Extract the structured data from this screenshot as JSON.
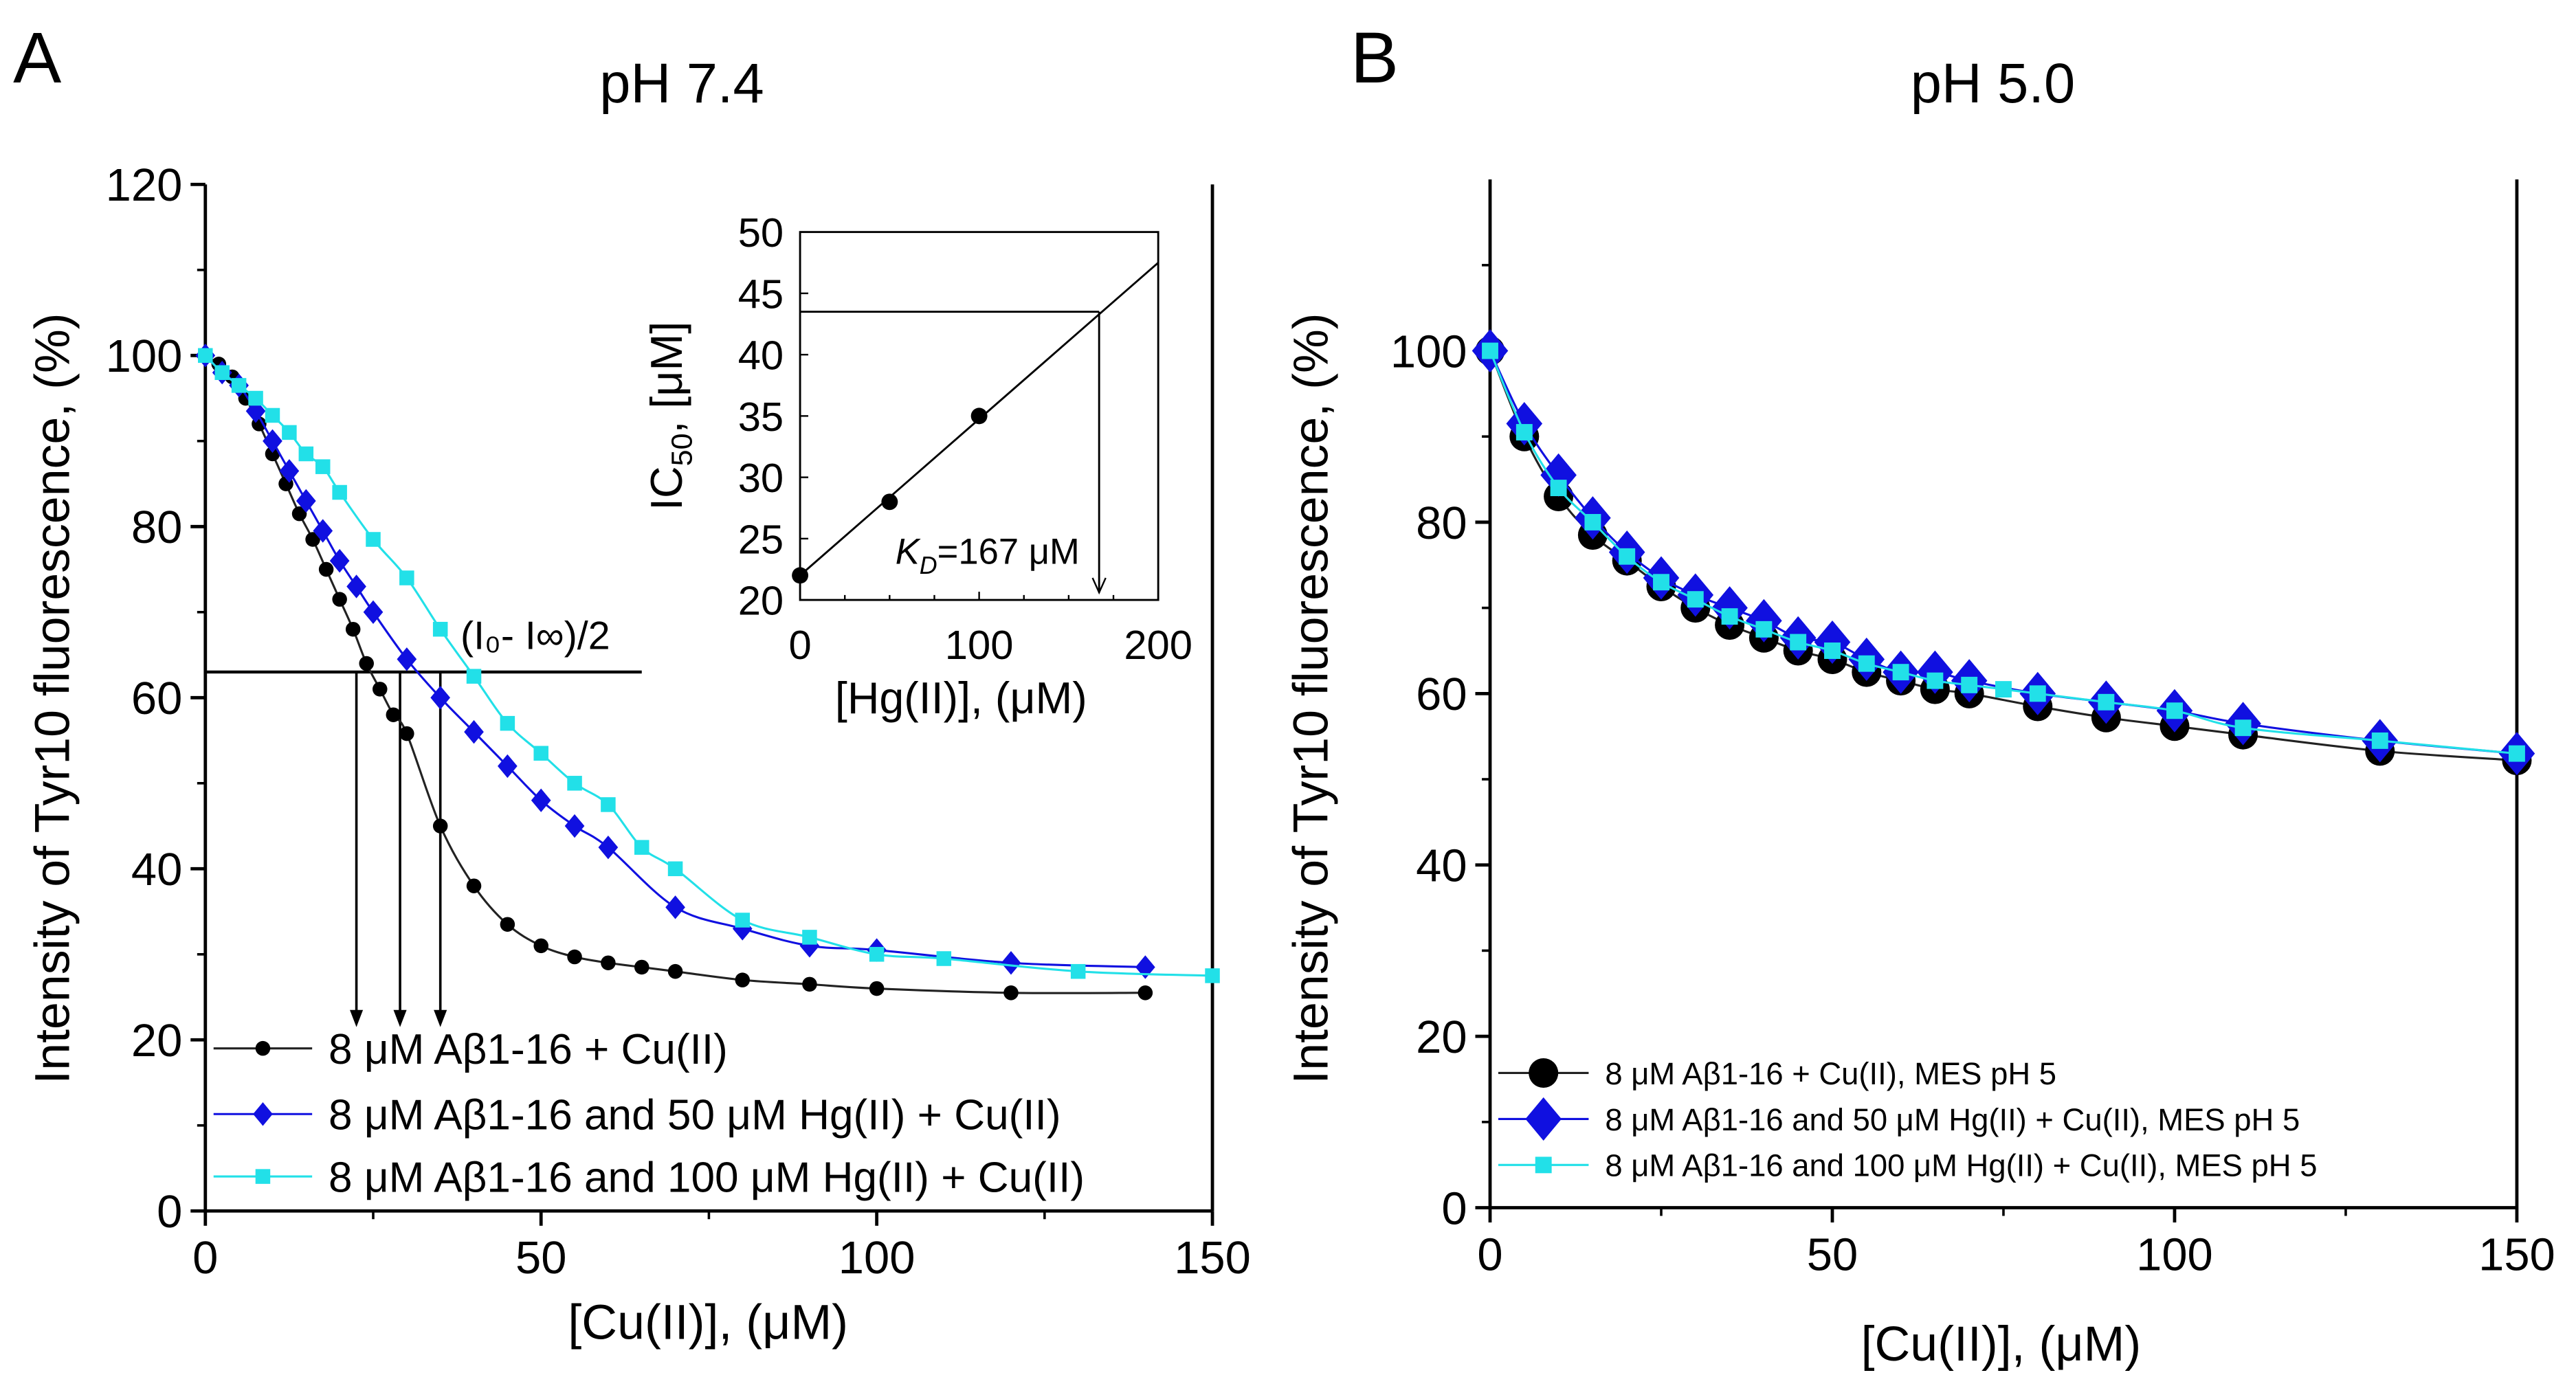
{
  "chart_data": [
    {
      "type": "scatter",
      "panel_label": "A",
      "title": "pH 7.4",
      "xlabel": "[Cu(II)], (μM)",
      "ylabel": "Intensity of Tyr10 fluorescence, (%)",
      "xlim": [
        0,
        150
      ],
      "ylim": [
        0,
        120
      ],
      "xticks": [
        0,
        50,
        100,
        150
      ],
      "yticks": [
        0,
        20,
        40,
        60,
        80,
        100,
        120
      ],
      "legend_position": "bottom-left",
      "annotation": "(I₀- I∞)/2",
      "half_level": 63,
      "ic50_arrows_x": [
        22.5,
        29,
        35
      ],
      "series": [
        {
          "name": "8 μM Aβ1-16 + Cu(II)",
          "color": "#000000",
          "marker": "circle",
          "x": [
            0,
            2,
            4,
            6,
            8,
            10,
            12,
            14,
            16,
            18,
            20,
            22,
            24,
            26,
            28,
            30,
            35,
            40,
            45,
            50,
            55,
            60,
            65,
            70,
            80,
            90,
            100,
            120,
            140
          ],
          "y": [
            100,
            99,
            97.5,
            95,
            92,
            88.5,
            85,
            81.5,
            78.5,
            75,
            71.5,
            68,
            64,
            61,
            58,
            55.8,
            45,
            38,
            33.5,
            31,
            29.7,
            29,
            28.5,
            28,
            27,
            26.5,
            26,
            25.5,
            25.5
          ]
        },
        {
          "name": "8 μM Aβ1-16 and 50 μM Hg(II) + Cu(II)",
          "color": "#1010e0",
          "marker": "diamond",
          "x": [
            0,
            2.5,
            5,
            7.5,
            10,
            12.5,
            15,
            17.5,
            20,
            22.5,
            25,
            30,
            35,
            40,
            45,
            50,
            55,
            60,
            70,
            80,
            90,
            100,
            120,
            140
          ],
          "y": [
            100,
            98,
            96.5,
            93.5,
            90,
            86.5,
            83,
            79.5,
            76,
            73,
            70,
            64.5,
            60,
            56,
            52,
            48,
            45,
            42.5,
            35.5,
            33,
            31,
            30.5,
            29,
            28.5
          ]
        },
        {
          "name": "8 μM Aβ1-16 and 100 μM Hg(II) + Cu(II)",
          "color": "#22e0e8",
          "marker": "square",
          "x": [
            0,
            2.5,
            5,
            7.5,
            10,
            12.5,
            15,
            17.5,
            20,
            25,
            30,
            35,
            40,
            45,
            50,
            55,
            60,
            65,
            70,
            80,
            90,
            100,
            110,
            130,
            150
          ],
          "y": [
            100,
            98,
            96.5,
            95,
            93,
            91,
            88.5,
            87,
            84,
            78.5,
            74,
            68,
            62.5,
            57,
            53.5,
            50,
            47.5,
            42.5,
            40,
            34,
            32,
            30,
            29.5,
            28,
            27.5
          ]
        }
      ],
      "inset": {
        "type": "scatter",
        "xlabel": "[Hg(II)], (μM)",
        "ylabel_main": "IC",
        "ylabel_sub": "50",
        "ylabel_rest": ", [μM]",
        "xlim": [
          0,
          200
        ],
        "ylim": [
          20,
          50
        ],
        "xticks": [
          0,
          100,
          200
        ],
        "yticks": [
          20,
          25,
          30,
          35,
          40,
          45,
          50
        ],
        "x": [
          0,
          50,
          100
        ],
        "y": [
          22,
          28,
          35
        ],
        "fit_line": {
          "x": [
            0,
            200
          ],
          "y": [
            22,
            47.5
          ]
        },
        "kd_value": 167,
        "kd_ic50": 43.5,
        "annotation_k": "K",
        "annotation_sub": "D",
        "annotation_rest": "=167 μM"
      }
    },
    {
      "type": "scatter",
      "panel_label": "B",
      "title": "pH 5.0",
      "xlabel": "[Cu(II)],  (μM)",
      "ylabel": "Intensity of Tyr10 fluorescence,  (%)",
      "xlim": [
        0,
        150
      ],
      "ylim": [
        0,
        120
      ],
      "xticks": [
        0,
        50,
        100,
        150
      ],
      "yticks": [
        0,
        20,
        40,
        60,
        80,
        100
      ],
      "legend_position": "bottom-left",
      "series": [
        {
          "name": "8 μM Aβ1-16 + Cu(II), MES pH 5",
          "color": "#000000",
          "marker": "circle",
          "x": [
            0,
            5,
            10,
            15,
            20,
            25,
            30,
            35,
            40,
            45,
            50,
            55,
            60,
            65,
            70,
            80,
            90,
            100,
            110,
            130,
            150
          ],
          "y": [
            100,
            90,
            83,
            78.5,
            75.5,
            72.5,
            70,
            68,
            66.5,
            65,
            64,
            62.5,
            61.5,
            60.5,
            60,
            58.5,
            57.2,
            56.2,
            55.2,
            53.3,
            52.2
          ]
        },
        {
          "name": "8 μM Aβ1-16 and 50 μM Hg(II) + Cu(II), MES pH 5",
          "color": "#1010e0",
          "marker": "diamond",
          "x": [
            0,
            5,
            10,
            15,
            20,
            25,
            30,
            35,
            40,
            45,
            50,
            55,
            60,
            65,
            70,
            80,
            90,
            100,
            110,
            130,
            150
          ],
          "y": [
            100,
            91.5,
            85.5,
            80.5,
            76.5,
            73.5,
            71.5,
            70,
            68.5,
            66.5,
            66,
            64,
            62.5,
            62.5,
            61.5,
            60,
            59,
            58,
            56.5,
            54.5,
            53
          ]
        },
        {
          "name": "8 μM Aβ1-16 and 100 μM Hg(II) + Cu(II), MES pH 5",
          "color": "#22e0e8",
          "marker": "square",
          "x": [
            0,
            5,
            10,
            15,
            20,
            25,
            30,
            35,
            40,
            45,
            50,
            55,
            60,
            65,
            70,
            75,
            80,
            90,
            100,
            110,
            130,
            150
          ],
          "y": [
            100,
            90.5,
            84,
            80,
            76,
            73,
            71,
            69,
            67.5,
            66,
            65,
            63.5,
            62.5,
            61.5,
            61,
            60.5,
            60,
            59,
            58,
            56,
            54.5,
            53
          ]
        }
      ]
    }
  ]
}
